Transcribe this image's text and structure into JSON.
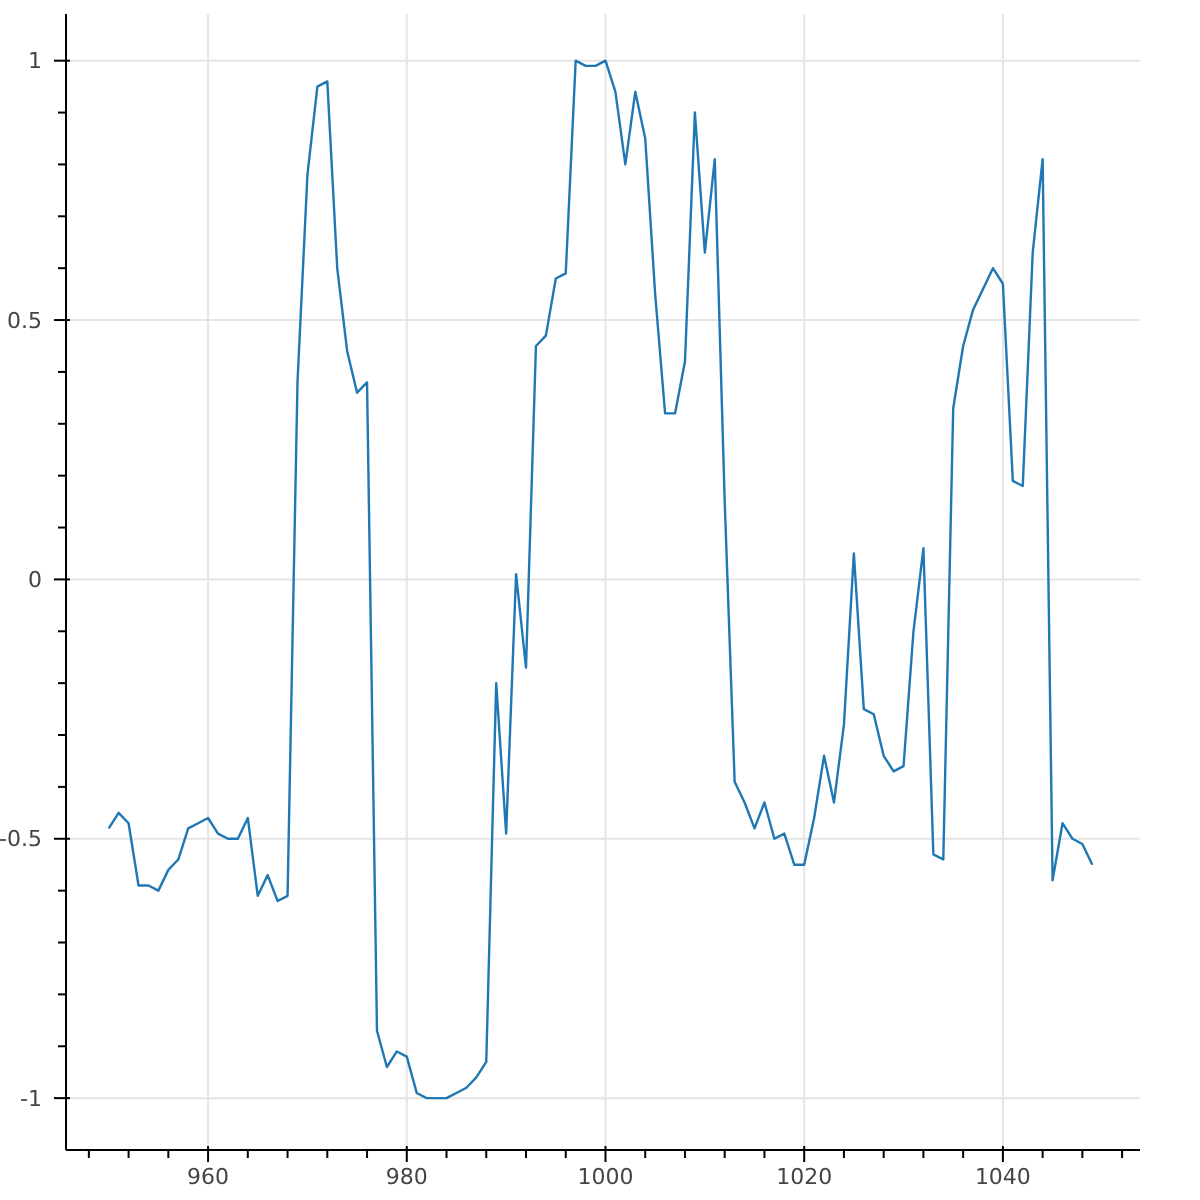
{
  "chart_data": {
    "type": "line",
    "x": [
      950,
      951,
      952,
      953,
      954,
      955,
      956,
      957,
      958,
      959,
      960,
      961,
      962,
      963,
      964,
      965,
      966,
      967,
      968,
      969,
      970,
      971,
      972,
      973,
      974,
      975,
      976,
      977,
      978,
      979,
      980,
      981,
      982,
      983,
      984,
      985,
      986,
      987,
      988,
      989,
      990,
      991,
      992,
      993,
      994,
      995,
      996,
      997,
      998,
      999,
      1000,
      1001,
      1002,
      1003,
      1004,
      1005,
      1006,
      1007,
      1008,
      1009,
      1010,
      1011,
      1012,
      1013,
      1014,
      1015,
      1016,
      1017,
      1018,
      1019,
      1020,
      1021,
      1022,
      1023,
      1024,
      1025,
      1026,
      1027,
      1028,
      1029,
      1030,
      1031,
      1032,
      1033,
      1034,
      1035,
      1036,
      1037,
      1038,
      1039,
      1040,
      1041,
      1042,
      1043,
      1044,
      1045,
      1046,
      1047,
      1048,
      1049
    ],
    "series": [
      {
        "color": "#1f77b4",
        "values": [
          -0.48,
          -0.45,
          -0.47,
          -0.59,
          -0.59,
          -0.6,
          -0.56,
          -0.54,
          -0.48,
          -0.47,
          -0.46,
          -0.49,
          -0.5,
          -0.5,
          -0.46,
          -0.61,
          -0.57,
          -0.62,
          -0.61,
          0.38,
          0.78,
          0.95,
          0.96,
          0.6,
          0.44,
          0.36,
          0.38,
          -0.87,
          -0.94,
          -0.91,
          -0.92,
          -0.99,
          -1.0,
          -1.0,
          -1.0,
          -0.99,
          -0.98,
          -0.96,
          -0.93,
          -0.2,
          -0.49,
          0.01,
          -0.17,
          0.45,
          0.47,
          0.58,
          0.59,
          1.0,
          0.99,
          0.99,
          1.0,
          0.94,
          0.8,
          0.94,
          0.85,
          0.55,
          0.32,
          0.32,
          0.42,
          0.9,
          0.63,
          0.81,
          0.15,
          -0.39,
          -0.43,
          -0.48,
          -0.43,
          -0.5,
          -0.49,
          -0.55,
          -0.55,
          -0.46,
          -0.34,
          -0.43,
          -0.28,
          0.05,
          -0.25,
          -0.26,
          -0.34,
          -0.37,
          -0.36,
          -0.1,
          0.06,
          -0.53,
          -0.54,
          0.33,
          0.45,
          0.52,
          0.56,
          0.6,
          0.57,
          0.19,
          0.18,
          0.63,
          0.81,
          -0.58,
          -0.47,
          -0.5,
          -0.51,
          -0.55
        ]
      }
    ],
    "xlim": [
      945.7,
      1053.8
    ],
    "xticks": [
      {
        "value": 948,
        "label": null
      },
      {
        "value": 952,
        "label": null
      },
      {
        "value": 956,
        "label": null
      },
      960,
      {
        "value": 964,
        "label": null
      },
      {
        "value": 968,
        "label": null
      },
      {
        "value": 972,
        "label": null
      },
      {
        "value": 976,
        "label": null
      },
      980,
      {
        "value": 984,
        "label": null
      },
      {
        "value": 988,
        "label": null
      },
      {
        "value": 992,
        "label": null
      },
      {
        "value": 996,
        "label": null
      },
      1000,
      {
        "value": 1004,
        "label": null
      },
      {
        "value": 1008,
        "label": null
      },
      {
        "value": 1012,
        "label": null
      },
      {
        "value": 1016,
        "label": null
      },
      1020,
      {
        "value": 1024,
        "label": null
      },
      {
        "value": 1028,
        "label": null
      },
      {
        "value": 1032,
        "label": null
      },
      {
        "value": 1036,
        "label": null
      },
      1040,
      {
        "value": 1044,
        "label": null
      },
      {
        "value": 1048,
        "label": null
      },
      {
        "value": 1052,
        "label": null
      }
    ],
    "ylim": [
      -1.1,
      1.09
    ],
    "yticks": [
      -1,
      {
        "value": -0.9,
        "label": null
      },
      {
        "value": -0.8,
        "label": null
      },
      {
        "value": -0.7,
        "label": null
      },
      {
        "value": -0.6,
        "label": null
      },
      -0.5,
      {
        "value": -0.4,
        "label": null
      },
      {
        "value": -0.3,
        "label": null
      },
      {
        "value": -0.2,
        "label": null
      },
      {
        "value": -0.1,
        "label": null
      },
      0,
      {
        "value": 0.1,
        "label": null
      },
      {
        "value": 0.2,
        "label": null
      },
      {
        "value": 0.3,
        "label": null
      },
      {
        "value": 0.4,
        "label": null
      },
      0.5,
      {
        "value": 0.6,
        "label": null
      },
      {
        "value": 0.7,
        "label": null
      },
      {
        "value": 0.8,
        "label": null
      },
      {
        "value": 0.9,
        "label": null
      },
      1
    ],
    "grid": true
  }
}
